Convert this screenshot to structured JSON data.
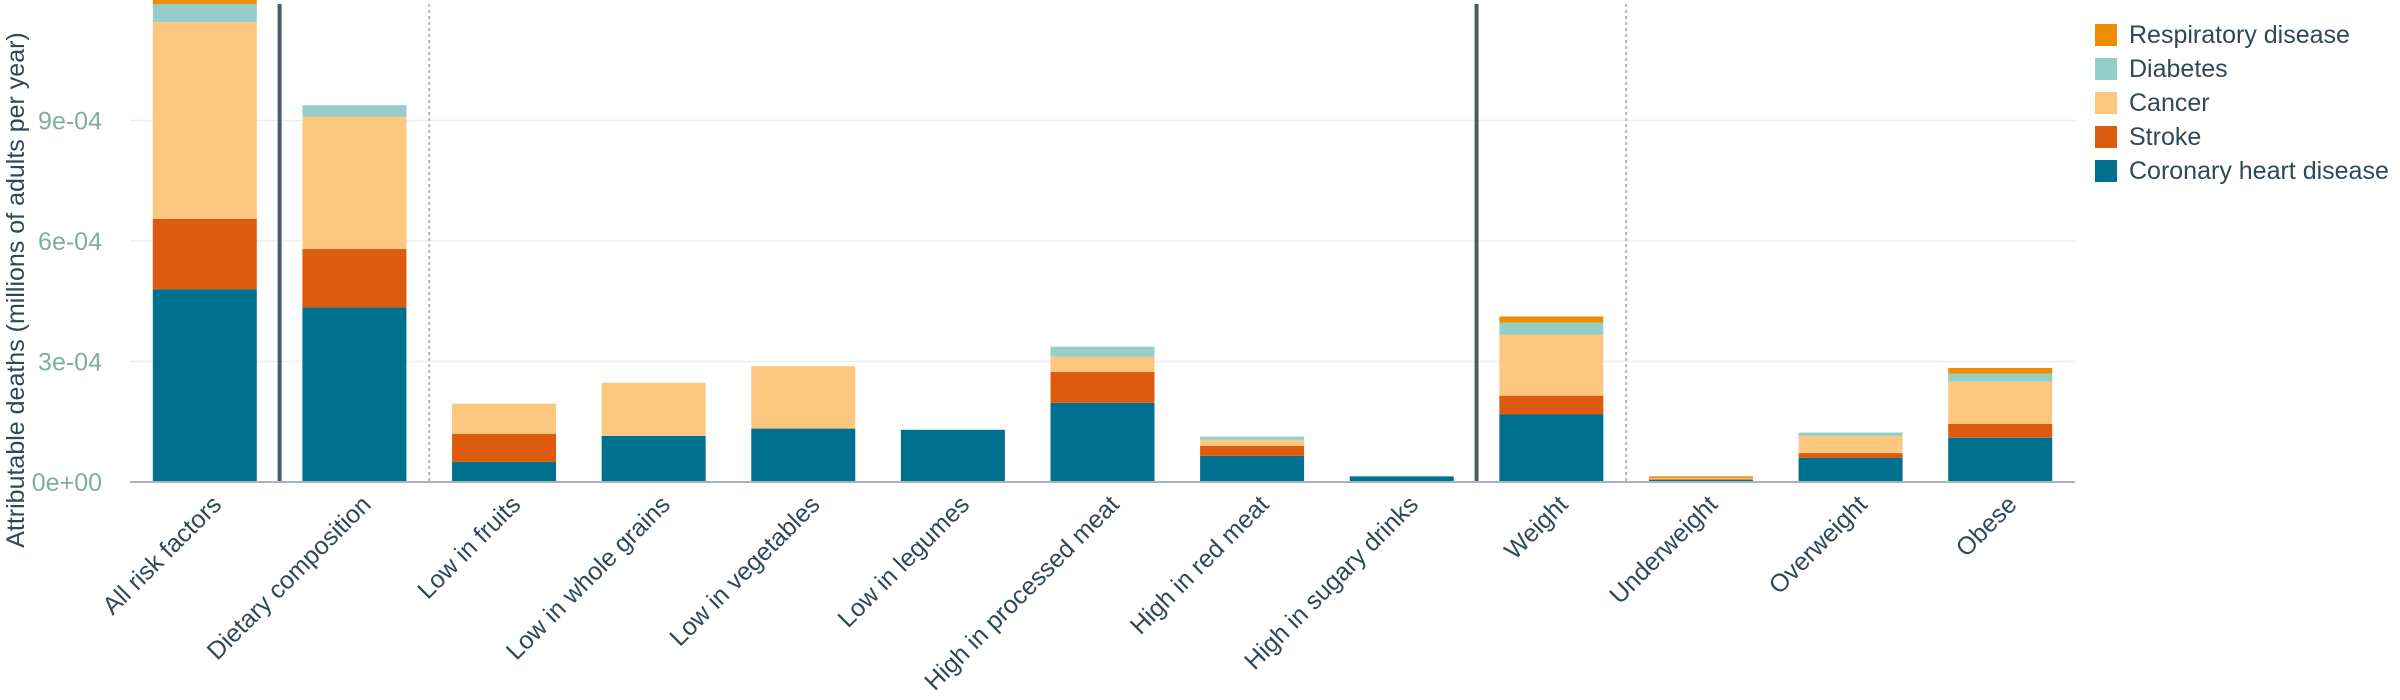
{
  "chart_data": {
    "type": "bar",
    "stacked": true,
    "ylabel": "Attributable deaths (millions of adults per year)",
    "ylim": [
      0,
      0.0012
    ],
    "yticks": [
      {
        "value": 0,
        "label": "0e+00"
      },
      {
        "value": 0.0003,
        "label": "3e-04"
      },
      {
        "value": 0.0006,
        "label": "6e-04"
      },
      {
        "value": 0.0009,
        "label": "9e-04"
      }
    ],
    "grid": true,
    "legend_position": "top-right",
    "categories": [
      "All risk factors",
      "Dietary composition",
      "Low in fruits",
      "Low in whole grains",
      "Low in vegetables",
      "Low in legumes",
      "High in processed meat",
      "High in red meat",
      "High in sugary drinks",
      "Weight",
      "Underweight",
      "Overweight",
      "Obese"
    ],
    "series": [
      {
        "name": "Coronary heart disease",
        "color": "#00708f",
        "values": [
          0.00048,
          0.000435,
          5e-05,
          0.000115,
          0.000133,
          0.00013,
          0.000197,
          6.5e-05,
          1.4e-05,
          0.000168,
          5e-06,
          6e-05,
          0.00011
        ]
      },
      {
        "name": "Stroke",
        "color": "#dc5b0e",
        "values": [
          0.000175,
          0.000145,
          7e-05,
          0,
          0,
          0,
          7.7e-05,
          2.5e-05,
          0,
          4.7e-05,
          2e-06,
          1.2e-05,
          3.5e-05
        ]
      },
      {
        "name": "Cancer",
        "color": "#fcc77e",
        "values": [
          0.00049,
          0.00033,
          7.5e-05,
          0.000132,
          0.000155,
          0,
          3.8e-05,
          1.5e-05,
          0,
          0.000152,
          2e-06,
          4.3e-05,
          0.000105
        ]
      },
      {
        "name": "Diabetes",
        "color": "#95cdc9",
        "values": [
          4.5e-05,
          2.8e-05,
          0,
          0,
          0,
          0,
          2.5e-05,
          8e-06,
          0,
          3e-05,
          1e-06,
          8e-06,
          2e-05
        ]
      },
      {
        "name": "Respiratory disease",
        "color": "#ef8c00",
        "values": [
          1.2e-05,
          0,
          0,
          0,
          0,
          0,
          0,
          0,
          0,
          1.5e-05,
          4e-06,
          0,
          1.4e-05
        ]
      }
    ],
    "group_separators": [
      {
        "after_index": 0,
        "style": "solid"
      },
      {
        "after_index": 1,
        "style": "dotted"
      },
      {
        "after_index": 8,
        "style": "solid"
      },
      {
        "after_index": 9,
        "style": "dotted"
      }
    ],
    "legend_order": [
      "Respiratory disease",
      "Diabetes",
      "Cancer",
      "Stroke",
      "Coronary heart disease"
    ],
    "colors": {
      "axis_text": "#2f4858",
      "tick_text": "#7fae9a",
      "grid": "#eeeeee",
      "separator": "#4a5a66"
    }
  }
}
